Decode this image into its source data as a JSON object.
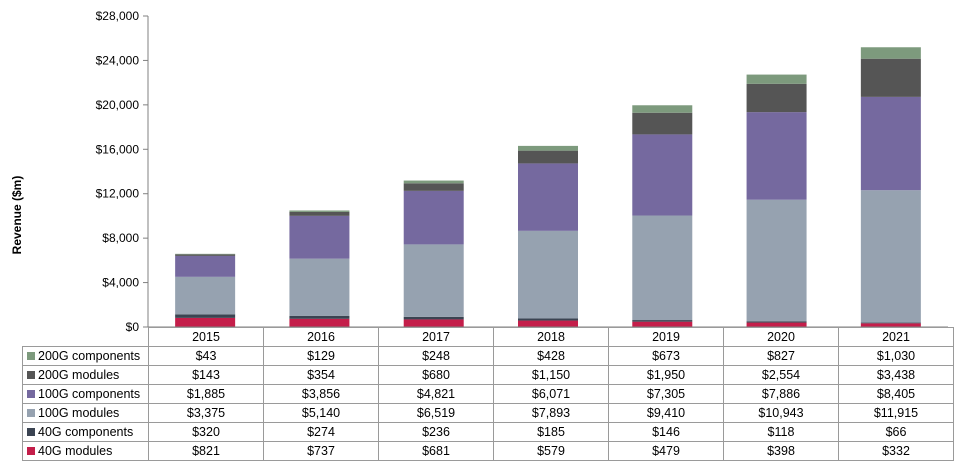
{
  "chart_data": {
    "type": "bar",
    "stacked": true,
    "title": "",
    "xlabel": "",
    "ylabel": "Revenue ($m)",
    "ylim": [
      0,
      28000
    ],
    "yticks": [
      0,
      4000,
      8000,
      12000,
      16000,
      20000,
      24000,
      28000
    ],
    "ytick_labels": [
      "$0",
      "$4,000",
      "$8,000",
      "$12,000",
      "$16,000",
      "$20,000",
      "$24,000",
      "$28,000"
    ],
    "categories": [
      "2015",
      "2016",
      "2017",
      "2018",
      "2019",
      "2020",
      "2021"
    ],
    "legend_placement": "data-table-left",
    "grid": false,
    "series": [
      {
        "name": "40G modules",
        "color": "#c41e4a",
        "values": [
          821,
          737,
          681,
          579,
          479,
          398,
          332
        ]
      },
      {
        "name": "40G components",
        "color": "#3b4452",
        "values": [
          320,
          274,
          236,
          185,
          146,
          118,
          66
        ]
      },
      {
        "name": "100G modules",
        "color": "#96a2b0",
        "values": [
          3375,
          5140,
          6519,
          7893,
          9410,
          10943,
          11915
        ]
      },
      {
        "name": "100G components",
        "color": "#75699f",
        "values": [
          1885,
          3856,
          4821,
          6071,
          7305,
          7886,
          8405
        ]
      },
      {
        "name": "200G modules",
        "color": "#555555",
        "values": [
          143,
          354,
          680,
          1150,
          1950,
          2554,
          3438
        ]
      },
      {
        "name": "200G components",
        "color": "#7d9a7d",
        "values": [
          43,
          129,
          248,
          428,
          673,
          827,
          1030
        ]
      }
    ]
  },
  "table": {
    "headers": [
      "2015",
      "2016",
      "2017",
      "2018",
      "2019",
      "2020",
      "2021"
    ],
    "rows": [
      {
        "label": "200G components",
        "color": "#7d9a7d",
        "cells": [
          "$43",
          "$129",
          "$248",
          "$428",
          "$673",
          "$827",
          "$1,030"
        ]
      },
      {
        "label": "200G modules",
        "color": "#555555",
        "cells": [
          "$143",
          "$354",
          "$680",
          "$1,150",
          "$1,950",
          "$2,554",
          "$3,438"
        ]
      },
      {
        "label": "100G components",
        "color": "#75699f",
        "cells": [
          "$1,885",
          "$3,856",
          "$4,821",
          "$6,071",
          "$7,305",
          "$7,886",
          "$8,405"
        ]
      },
      {
        "label": "100G modules",
        "color": "#96a2b0",
        "cells": [
          "$3,375",
          "$5,140",
          "$6,519",
          "$7,893",
          "$9,410",
          "$10,943",
          "$11,915"
        ]
      },
      {
        "label": "40G components",
        "color": "#3b4452",
        "cells": [
          "$320",
          "$274",
          "$236",
          "$185",
          "$146",
          "$118",
          "$66"
        ]
      },
      {
        "label": "40G modules",
        "color": "#c41e4a",
        "cells": [
          "$821",
          "$737",
          "$681",
          "$579",
          "$479",
          "$398",
          "$332"
        ]
      }
    ]
  }
}
